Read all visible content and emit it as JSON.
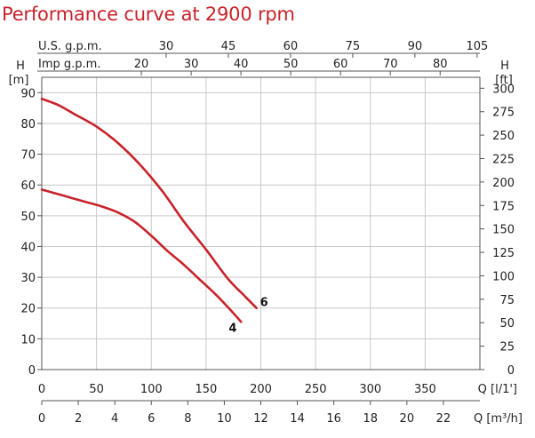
{
  "title": "Performance curve at 2900 rpm",
  "chart_data": {
    "type": "line",
    "title": "Performance curve at 2900 rpm",
    "x_axis": {
      "label": "Q [l/1']",
      "range": [
        0,
        400
      ],
      "ticks": [
        0,
        50,
        100,
        150,
        200,
        250,
        300,
        350
      ]
    },
    "x_axis_m3h": {
      "label": "Q [m³/h]",
      "range": [
        0,
        24
      ],
      "ticks": [
        0,
        2,
        4,
        6,
        8,
        10,
        12,
        14,
        16,
        18,
        20,
        22
      ]
    },
    "top_axis_us": {
      "label": "U.S. g.p.m.",
      "ticks": [
        30,
        45,
        60,
        75,
        90,
        105
      ]
    },
    "top_axis_imp": {
      "label": "Imp g.p.m.",
      "ticks": [
        20,
        30,
        40,
        50,
        60,
        70,
        80
      ]
    },
    "y_axis": {
      "label_top": "H",
      "label_unit": "[m]",
      "range": [
        0,
        95
      ],
      "ticks": [
        0,
        10,
        20,
        30,
        40,
        50,
        60,
        70,
        80,
        90
      ]
    },
    "y_axis_right": {
      "label_top": "H",
      "label_unit": "[ft]",
      "ticks": [
        0,
        25,
        50,
        75,
        100,
        125,
        150,
        175,
        200,
        225,
        250,
        275,
        300
      ]
    },
    "grid": true,
    "color": "#c8222a",
    "series": [
      {
        "name": "6",
        "x": [
          0,
          15,
          30,
          50,
          70,
          90,
          110,
          130,
          150,
          170,
          185,
          196
        ],
        "y": [
          88,
          86,
          83,
          79,
          73.5,
          66.5,
          58,
          48,
          39,
          29.5,
          24,
          20
        ]
      },
      {
        "name": "4",
        "x": [
          0,
          20,
          40,
          55,
          70,
          85,
          100,
          115,
          130,
          145,
          160,
          172,
          182
        ],
        "y": [
          58.5,
          56.5,
          54.5,
          53,
          51,
          48,
          43.5,
          38.5,
          34,
          29,
          24,
          19.5,
          15.5
        ]
      }
    ]
  }
}
